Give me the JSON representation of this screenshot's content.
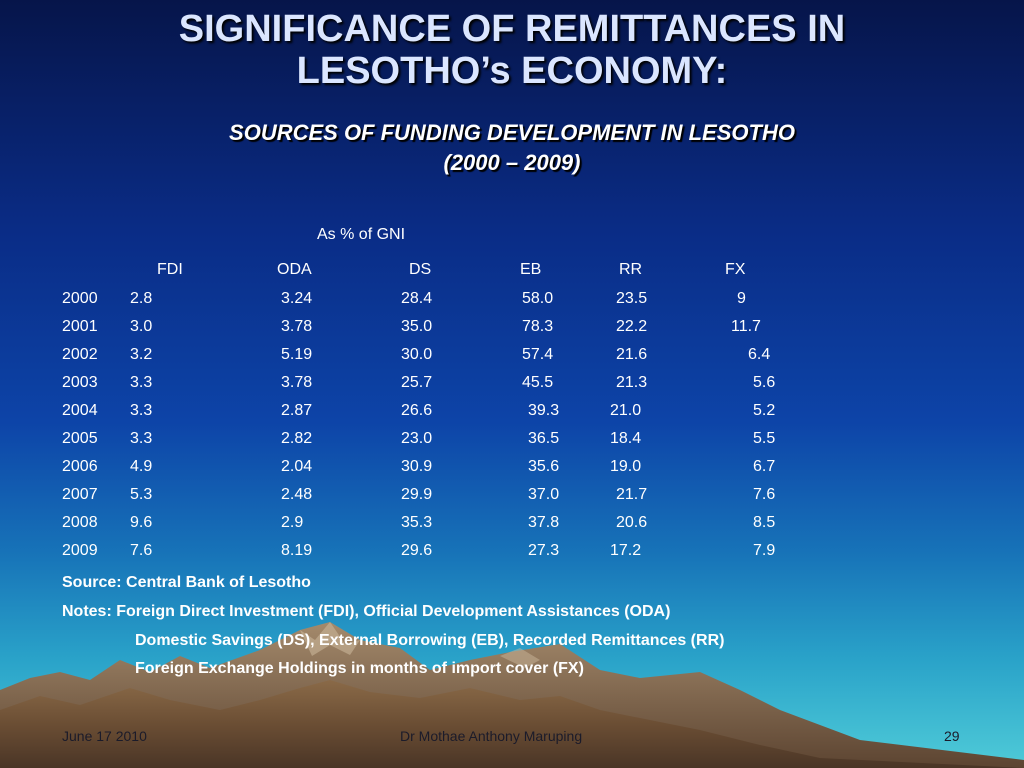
{
  "title": {
    "line1": "SIGNIFICANCE OF REMITTANCES IN",
    "line2": "LESOTHO’s ECONOMY:",
    "sub1": "SOURCES OF FUNDING DEVELOPMENT IN LESOTHO",
    "sub2": "(2000 – 2009)"
  },
  "table": {
    "units": "As % of GNI",
    "columns": [
      "FDI",
      "ODA",
      "DS",
      "EB",
      "RR",
      "FX"
    ],
    "rows": [
      {
        "year": "2000",
        "fdi": "2.8",
        "oda": "3.24",
        "ds": "28.4",
        "eb": "58.0",
        "rr": "23.5",
        "fx": "9"
      },
      {
        "year": "2001",
        "fdi": "3.0",
        "oda": "3.78",
        "ds": "35.0",
        "eb": "78.3",
        "rr": "22.2",
        "fx": "11.7"
      },
      {
        "year": "2002",
        "fdi": "3.2",
        "oda": "5.19",
        "ds": "30.0",
        "eb": "57.4",
        "rr": "21.6",
        "fx": "6.4"
      },
      {
        "year": "2003",
        "fdi": "3.3",
        "oda": "3.78",
        "ds": "25.7",
        "eb": "45.5",
        "rr": "21.3",
        "fx": "5.6"
      },
      {
        "year": "2004",
        "fdi": "3.3",
        "oda": "2.87",
        "ds": "26.6",
        "eb": "39.3",
        "rr": "21.0",
        "fx": "5.2"
      },
      {
        "year": "2005",
        "fdi": "3.3",
        "oda": "2.82",
        "ds": "23.0",
        "eb": "36.5",
        "rr": "18.4",
        "fx": "5.5"
      },
      {
        "year": "2006",
        "fdi": "4.9",
        "oda": "2.04",
        "ds": "30.9",
        "eb": "35.6",
        "rr": "19.0",
        "fx": "6.7"
      },
      {
        "year": "2007",
        "fdi": "5.3",
        "oda": "2.48",
        "ds": "29.9",
        "eb": "37.0",
        "rr": "21.7",
        "fx": "7.6"
      },
      {
        "year": "2008",
        "fdi": "9.6",
        "oda": "2.9",
        "ds": "35.3",
        "eb": "37.8",
        "rr": "20.6",
        "fx": "8.5"
      },
      {
        "year": "2009",
        "fdi": "7.6",
        "oda": "8.19",
        "ds": "29.6",
        "eb": "27.3",
        "rr": "17.2",
        "fx": "7.9"
      }
    ]
  },
  "source": "Source: Central Bank of Lesotho",
  "notes": {
    "line1": "Notes: Foreign Direct Investment (FDI), Official Development Assistances (ODA)",
    "line2": "Domestic Savings (DS), External Borrowing (EB), Recorded Remittances (RR)",
    "line3": "Foreign Exchange Holdings in months of import cover (FX)"
  },
  "footer": {
    "date": "June 17 2010",
    "author": "Dr  Mothae Anthony Maruping",
    "page": "29"
  },
  "colors": {
    "background_top": "#06154a",
    "background_bottom": "#4fcbd8",
    "title": "#dbe6ff",
    "text": "#ffffff",
    "mountain": "#7a5a3a"
  }
}
